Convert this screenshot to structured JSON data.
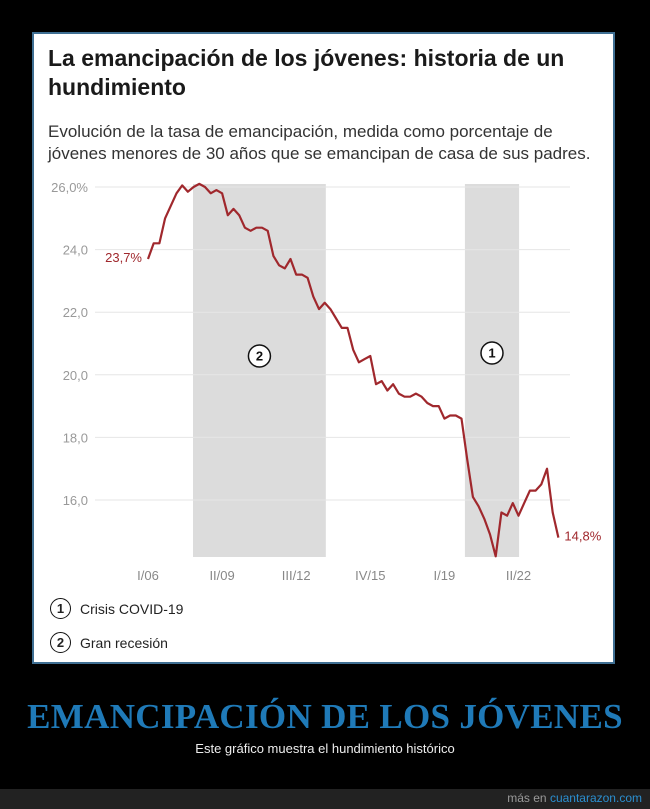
{
  "title": "La emancipación de los jóvenes: historia de un hundimiento",
  "subtitle": "Evolución de la tasa de emancipación, medida como porcentaje de jóvenes menores de 30 años que se emancipan de casa de sus padres.",
  "chart_data": {
    "type": "line",
    "title": "La emancipación de los jóvenes: historia de un hundimiento",
    "xlabel": "",
    "ylabel": "",
    "x_unit": "quarters since I/06",
    "x_ticks": [
      {
        "q": 0,
        "label": "I/06"
      },
      {
        "q": 13,
        "label": "II/09"
      },
      {
        "q": 26,
        "label": "III/12"
      },
      {
        "q": 39,
        "label": "IV/15"
      },
      {
        "q": 52,
        "label": "I/19"
      },
      {
        "q": 65,
        "label": "II/22"
      }
    ],
    "y_ticks": [
      {
        "v": 26,
        "label": "26,0%"
      },
      {
        "v": 24,
        "label": "24,0"
      },
      {
        "v": 22,
        "label": "22,0"
      },
      {
        "v": 20,
        "label": "20,0"
      },
      {
        "v": 18,
        "label": "18,0"
      },
      {
        "v": 16,
        "label": "16,0"
      }
    ],
    "ylim": [
      14.2,
      26.1
    ],
    "grid": true,
    "series": [
      {
        "name": "Tasa de emancipación",
        "color": "#a0282d",
        "values": [
          23.7,
          24.2,
          24.2,
          25.0,
          25.4,
          25.8,
          26.05,
          25.85,
          26.0,
          26.1,
          26.0,
          25.8,
          25.9,
          25.8,
          25.1,
          25.3,
          25.1,
          24.7,
          24.6,
          24.7,
          24.7,
          24.6,
          23.8,
          23.5,
          23.4,
          23.7,
          23.2,
          23.2,
          23.1,
          22.5,
          22.1,
          22.3,
          22.1,
          21.8,
          21.5,
          21.5,
          20.8,
          20.4,
          20.5,
          20.6,
          19.7,
          19.8,
          19.5,
          19.7,
          19.4,
          19.3,
          19.3,
          19.4,
          19.3,
          19.1,
          19.0,
          19.0,
          18.6,
          18.7,
          18.7,
          18.6,
          17.3,
          16.1,
          15.8,
          15.4,
          14.9,
          14.2,
          15.6,
          15.5,
          15.9,
          15.5,
          15.9,
          16.3,
          16.3,
          16.5,
          17.0,
          15.6,
          14.8
        ]
      }
    ],
    "annotations": [
      {
        "label": "23,7%",
        "position": "start"
      },
      {
        "label": "14,8%",
        "position": "end"
      }
    ],
    "shaded_periods": [
      {
        "marker": "2",
        "from_q": 7.9,
        "to_q": 31.2
      },
      {
        "marker": "1",
        "from_q": 55.6,
        "to_q": 65.1
      }
    ],
    "legend": [
      {
        "marker": "1",
        "label": "Crisis COVID-19"
      },
      {
        "marker": "2",
        "label": "Gran recesión"
      }
    ],
    "legend_placement": "bottom-left"
  },
  "headline": "EMANCIPACIÓN DE LOS JÓVENES",
  "caption": "Este gráfico muestra el hundimiento histórico",
  "footer": {
    "prefix": "más en",
    "link": "cuantarazon.com"
  }
}
